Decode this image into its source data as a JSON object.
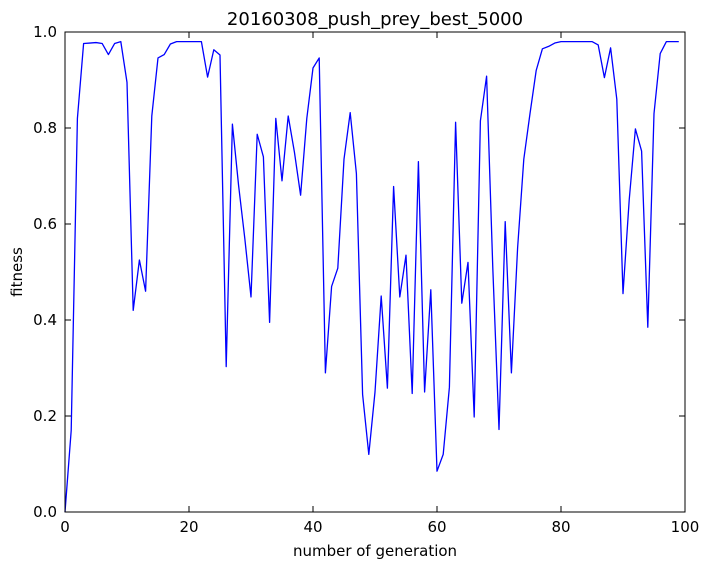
{
  "chart_data": {
    "type": "line",
    "title": "20160308_push_prey_best_5000",
    "xlabel": "number of generation",
    "ylabel": "fitness",
    "xlim": [
      0,
      100
    ],
    "ylim": [
      0.0,
      1.0
    ],
    "xticks": [
      "0",
      "20",
      "40",
      "60",
      "80",
      "100"
    ],
    "yticks": [
      "0.0",
      "0.2",
      "0.4",
      "0.6",
      "0.8",
      "1.0"
    ],
    "grid": false,
    "series": [
      {
        "color": "#0000ff",
        "x": [
          0,
          1,
          2,
          3,
          4,
          5,
          6,
          7,
          8,
          9,
          10,
          11,
          12,
          13,
          14,
          15,
          16,
          17,
          18,
          19,
          20,
          21,
          22,
          23,
          24,
          25,
          26,
          27,
          28,
          29,
          30,
          31,
          32,
          33,
          34,
          35,
          36,
          37,
          38,
          39,
          40,
          41,
          42,
          43,
          44,
          45,
          46,
          47,
          48,
          49,
          50,
          51,
          52,
          53,
          54,
          55,
          56,
          57,
          58,
          59,
          60,
          61,
          62,
          63,
          64,
          65,
          66,
          67,
          68,
          69,
          70,
          71,
          72,
          73,
          74,
          75,
          76,
          77,
          78,
          79,
          80,
          81,
          82,
          83,
          84,
          85,
          86,
          87,
          88,
          89,
          90,
          91,
          92,
          93,
          94,
          95,
          96,
          97,
          98,
          99
        ],
        "y": [
          0.0,
          0.17,
          0.82,
          0.976,
          0.977,
          0.978,
          0.976,
          0.953,
          0.976,
          0.98,
          0.895,
          0.42,
          0.525,
          0.46,
          0.825,
          0.946,
          0.953,
          0.975,
          0.98,
          0.98,
          0.98,
          0.98,
          0.98,
          0.906,
          0.963,
          0.952,
          0.303,
          0.808,
          0.68,
          0.57,
          0.448,
          0.787,
          0.74,
          0.395,
          0.82,
          0.69,
          0.825,
          0.75,
          0.66,
          0.82,
          0.925,
          0.946,
          0.29,
          0.47,
          0.508,
          0.735,
          0.832,
          0.705,
          0.245,
          0.12,
          0.25,
          0.45,
          0.258,
          0.678,
          0.448,
          0.535,
          0.247,
          0.73,
          0.25,
          0.463,
          0.085,
          0.12,
          0.26,
          0.812,
          0.435,
          0.52,
          0.198,
          0.815,
          0.908,
          0.508,
          0.172,
          0.605,
          0.29,
          0.55,
          0.735,
          0.83,
          0.92,
          0.965,
          0.97,
          0.977,
          0.98,
          0.98,
          0.98,
          0.98,
          0.98,
          0.98,
          0.973,
          0.905,
          0.967,
          0.86,
          0.455,
          0.65,
          0.798,
          0.752,
          0.385,
          0.83,
          0.955,
          0.98,
          0.98,
          0.98
        ]
      }
    ]
  }
}
